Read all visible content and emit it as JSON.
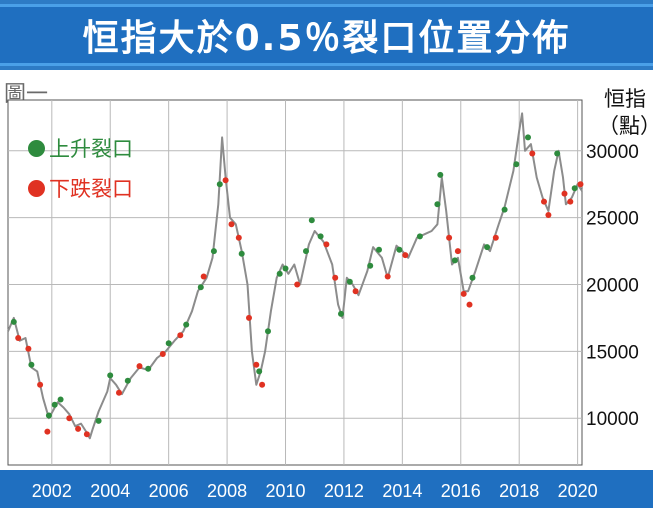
{
  "header": {
    "title": "恒指大於0.5％裂口位置分佈"
  },
  "figure_label": "圖一",
  "chart_data": {
    "type": "line",
    "ylabel_line1": "恒指",
    "ylabel_line2": "（點）",
    "xlim": [
      2000.5,
      2020.15
    ],
    "ylim": [
      6500,
      33800
    ],
    "y_ticks": [
      10000,
      15000,
      20000,
      25000,
      30000
    ],
    "y_tick_labels": [
      "10000",
      "15000",
      "20000",
      "25000",
      "30000"
    ],
    "x_ticks": [
      2002,
      2004,
      2006,
      2008,
      2010,
      2012,
      2014,
      2016,
      2018,
      2020
    ],
    "x_tick_labels": [
      "2002",
      "2004",
      "2006",
      "2008",
      "2010",
      "2012",
      "2014",
      "2016",
      "2018",
      "2020"
    ],
    "line_color": "#8c8c8c",
    "series": [
      {
        "name": "恒指",
        "points": [
          [
            2000.5,
            16500
          ],
          [
            2000.7,
            17500
          ],
          [
            2000.9,
            15800
          ],
          [
            2001.1,
            16000
          ],
          [
            2001.3,
            13800
          ],
          [
            2001.5,
            13500
          ],
          [
            2001.7,
            11500
          ],
          [
            2001.9,
            10000
          ],
          [
            2002.0,
            10400
          ],
          [
            2002.2,
            11200
          ],
          [
            2002.4,
            10800
          ],
          [
            2002.6,
            10300
          ],
          [
            2002.8,
            9400
          ],
          [
            2003.0,
            9600
          ],
          [
            2003.2,
            8900
          ],
          [
            2003.3,
            8500
          ],
          [
            2003.4,
            9200
          ],
          [
            2003.6,
            10500
          ],
          [
            2003.9,
            12000
          ],
          [
            2004.0,
            13000
          ],
          [
            2004.2,
            12500
          ],
          [
            2004.4,
            11800
          ],
          [
            2004.7,
            13000
          ],
          [
            2005.0,
            13800
          ],
          [
            2005.3,
            13600
          ],
          [
            2005.6,
            14500
          ],
          [
            2005.9,
            15000
          ],
          [
            2006.2,
            15800
          ],
          [
            2006.5,
            16500
          ],
          [
            2006.8,
            18000
          ],
          [
            2007.0,
            19500
          ],
          [
            2007.3,
            20500
          ],
          [
            2007.5,
            22000
          ],
          [
            2007.7,
            26000
          ],
          [
            2007.83,
            31000
          ],
          [
            2007.95,
            28000
          ],
          [
            2008.1,
            25000
          ],
          [
            2008.3,
            24500
          ],
          [
            2008.5,
            22500
          ],
          [
            2008.7,
            20000
          ],
          [
            2008.85,
            15000
          ],
          [
            2009.0,
            12500
          ],
          [
            2009.15,
            13500
          ],
          [
            2009.3,
            15000
          ],
          [
            2009.5,
            18000
          ],
          [
            2009.7,
            20500
          ],
          [
            2009.9,
            21500
          ],
          [
            2010.1,
            20800
          ],
          [
            2010.3,
            21500
          ],
          [
            2010.5,
            20000
          ],
          [
            2010.8,
            23000
          ],
          [
            2011.0,
            24000
          ],
          [
            2011.3,
            23200
          ],
          [
            2011.6,
            21500
          ],
          [
            2011.8,
            18500
          ],
          [
            2011.95,
            17500
          ],
          [
            2012.1,
            20500
          ],
          [
            2012.3,
            20000
          ],
          [
            2012.5,
            19200
          ],
          [
            2012.8,
            21000
          ],
          [
            2013.0,
            22800
          ],
          [
            2013.3,
            22000
          ],
          [
            2013.5,
            20500
          ],
          [
            2013.8,
            22900
          ],
          [
            2014.0,
            22500
          ],
          [
            2014.2,
            22000
          ],
          [
            2014.5,
            23500
          ],
          [
            2014.8,
            23800
          ],
          [
            2015.0,
            24000
          ],
          [
            2015.2,
            24500
          ],
          [
            2015.35,
            28000
          ],
          [
            2015.5,
            25500
          ],
          [
            2015.7,
            21500
          ],
          [
            2015.9,
            22000
          ],
          [
            2016.1,
            19500
          ],
          [
            2016.25,
            19500
          ],
          [
            2016.5,
            21000
          ],
          [
            2016.8,
            23000
          ],
          [
            2017.0,
            22500
          ],
          [
            2017.3,
            24500
          ],
          [
            2017.5,
            25800
          ],
          [
            2017.8,
            28500
          ],
          [
            2018.0,
            31500
          ],
          [
            2018.1,
            32800
          ],
          [
            2018.2,
            30000
          ],
          [
            2018.4,
            30500
          ],
          [
            2018.6,
            28000
          ],
          [
            2018.8,
            26500
          ],
          [
            2019.0,
            25500
          ],
          [
            2019.2,
            28500
          ],
          [
            2019.35,
            30000
          ],
          [
            2019.5,
            28000
          ],
          [
            2019.6,
            26000
          ],
          [
            2019.8,
            26500
          ],
          [
            2020.0,
            27500
          ],
          [
            2020.15,
            27000
          ]
        ]
      }
    ],
    "gaps_up": {
      "name": "上升裂口",
      "color": "#2e8b3e",
      "points": [
        [
          2000.7,
          17200
        ],
        [
          2001.3,
          14000
        ],
        [
          2001.9,
          10200
        ],
        [
          2002.1,
          11000
        ],
        [
          2002.3,
          11400
        ],
        [
          2003.6,
          9800
        ],
        [
          2004.0,
          13200
        ],
        [
          2004.6,
          12800
        ],
        [
          2005.3,
          13700
        ],
        [
          2006.0,
          15600
        ],
        [
          2006.6,
          17000
        ],
        [
          2007.1,
          19800
        ],
        [
          2007.55,
          22500
        ],
        [
          2007.75,
          27500
        ],
        [
          2008.5,
          22300
        ],
        [
          2009.1,
          13500
        ],
        [
          2009.4,
          16500
        ],
        [
          2009.8,
          20800
        ],
        [
          2010.0,
          21200
        ],
        [
          2010.7,
          22500
        ],
        [
          2010.9,
          24800
        ],
        [
          2011.2,
          23600
        ],
        [
          2011.9,
          17800
        ],
        [
          2012.2,
          20200
        ],
        [
          2012.9,
          21400
        ],
        [
          2013.2,
          22600
        ],
        [
          2013.9,
          22600
        ],
        [
          2014.6,
          23600
        ],
        [
          2015.2,
          26000
        ],
        [
          2015.3,
          28200
        ],
        [
          2015.8,
          21800
        ],
        [
          2016.4,
          20500
        ],
        [
          2016.9,
          22800
        ],
        [
          2017.5,
          25600
        ],
        [
          2017.9,
          29000
        ],
        [
          2018.3,
          31000
        ],
        [
          2019.3,
          29800
        ],
        [
          2019.9,
          27200
        ]
      ]
    },
    "gaps_down": {
      "name": "下跌裂口",
      "color": "#e03222",
      "points": [
        [
          2000.85,
          16000
        ],
        [
          2001.2,
          15200
        ],
        [
          2001.6,
          12500
        ],
        [
          2001.85,
          9000
        ],
        [
          2002.6,
          10000
        ],
        [
          2002.9,
          9200
        ],
        [
          2003.2,
          8800
        ],
        [
          2004.3,
          11900
        ],
        [
          2005.0,
          13900
        ],
        [
          2005.8,
          14800
        ],
        [
          2006.4,
          16200
        ],
        [
          2007.2,
          20600
        ],
        [
          2007.95,
          27800
        ],
        [
          2008.15,
          24500
        ],
        [
          2008.4,
          23500
        ],
        [
          2008.75,
          17500
        ],
        [
          2009.0,
          14000
        ],
        [
          2009.2,
          12500
        ],
        [
          2010.4,
          20000
        ],
        [
          2011.4,
          23000
        ],
        [
          2011.7,
          20500
        ],
        [
          2012.4,
          19500
        ],
        [
          2013.5,
          20600
        ],
        [
          2014.1,
          22200
        ],
        [
          2015.6,
          23500
        ],
        [
          2015.9,
          22500
        ],
        [
          2016.1,
          19300
        ],
        [
          2016.3,
          18500
        ],
        [
          2017.2,
          23500
        ],
        [
          2018.45,
          29800
        ],
        [
          2018.85,
          26200
        ],
        [
          2019.0,
          25200
        ],
        [
          2019.55,
          26800
        ],
        [
          2019.75,
          26200
        ],
        [
          2020.1,
          27500
        ]
      ]
    }
  }
}
